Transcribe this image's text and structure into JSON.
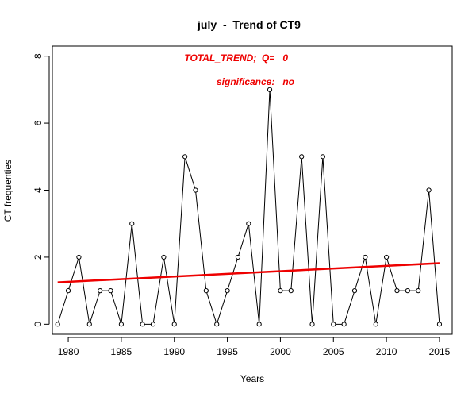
{
  "chart_data": {
    "type": "line",
    "title": "july  -  Trend of CT9",
    "xlabel": "Years",
    "ylabel": "CT frequenties",
    "xlim": [
      1978.5,
      2016.2
    ],
    "ylim": [
      -0.3,
      8.3
    ],
    "xticks": [
      1980,
      1985,
      1990,
      1995,
      2000,
      2005,
      2010,
      2015
    ],
    "yticks": [
      0,
      2,
      4,
      6,
      8
    ],
    "grid": false,
    "legend": "none",
    "series": [
      {
        "x": [
          1979,
          1980,
          1981,
          1982,
          1983,
          1984,
          1985,
          1986,
          1987,
          1988,
          1989,
          1990,
          1991,
          1992,
          1993,
          1994,
          1995,
          1996,
          1997,
          1998,
          1999,
          2000,
          2001,
          2002,
          2003,
          2004,
          2005,
          2006,
          2007,
          2008,
          2009,
          2010,
          2011,
          2012,
          2013,
          2014,
          2015
        ],
        "values": [
          0,
          1,
          2,
          0,
          1,
          1,
          0,
          3,
          0,
          0,
          2,
          0,
          5,
          4,
          1,
          0,
          1,
          2,
          3,
          0,
          7,
          1,
          1,
          5,
          0,
          5,
          0,
          0,
          1,
          2,
          0,
          2,
          1,
          1,
          1,
          4,
          0
        ],
        "color": "#000000",
        "marker": "open-circle"
      }
    ],
    "trend": {
      "x": [
        1979,
        2015
      ],
      "values": [
        1.25,
        1.82
      ],
      "color": "#ee0000"
    },
    "annotations": [
      {
        "text": "TOTAL_TREND;  Q=   0",
        "color": "#ee0000"
      },
      {
        "text": "significance:   no",
        "color": "#ee0000"
      }
    ]
  }
}
